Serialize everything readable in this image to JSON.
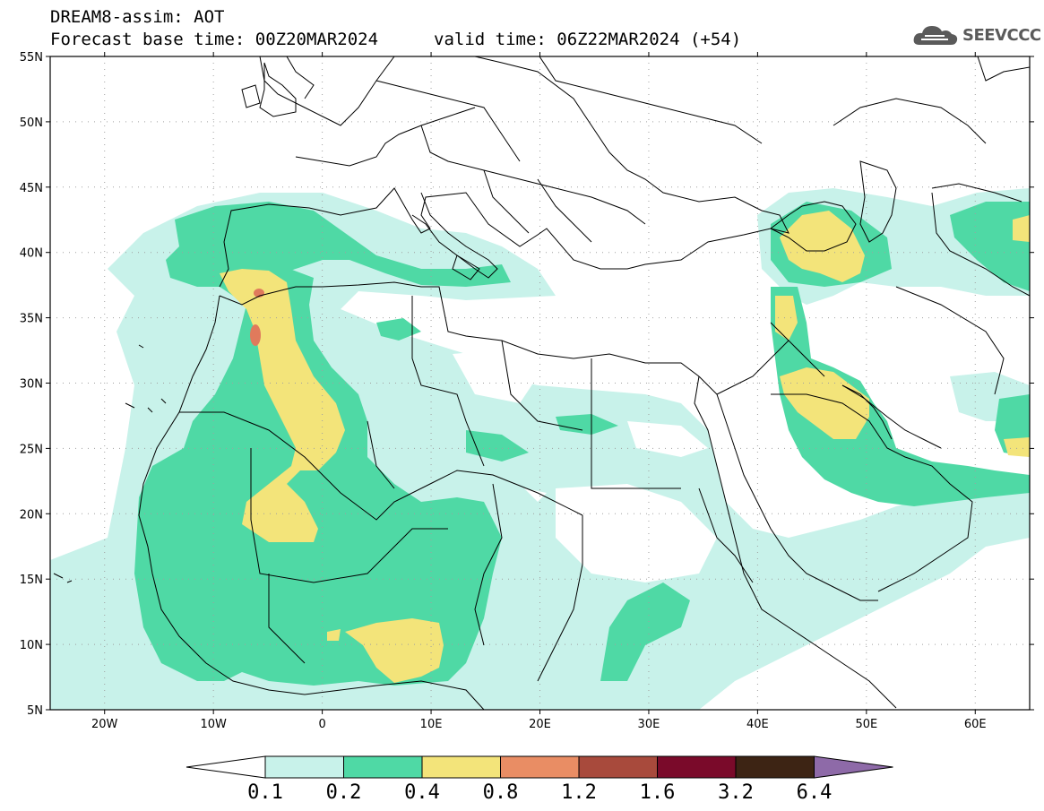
{
  "header": {
    "title": "DREAM8-assim: AOT",
    "base_time": "Forecast base time: 00Z20MAR2024",
    "valid_time": "valid time: 06Z22MAR2024 (+54)",
    "logo_text": "SEEVCCC"
  },
  "map": {
    "lon_range": [
      -25,
      65
    ],
    "lat_range": [
      5,
      55
    ],
    "lat_ticks": [
      "5N",
      "10N",
      "15N",
      "20N",
      "25N",
      "30N",
      "35N",
      "40N",
      "45N",
      "50N",
      "55N"
    ],
    "lon_ticks": [
      "20W",
      "10W",
      "0",
      "10E",
      "20E",
      "30E",
      "40E",
      "50E",
      "60E"
    ],
    "grid": true
  },
  "colorbar": {
    "levels": [
      "0.1",
      "0.2",
      "0.4",
      "0.8",
      "1.2",
      "1.6",
      "3.2",
      "6.4"
    ],
    "colors": [
      "#c8f2ea",
      "#4fd9a5",
      "#f3e47a",
      "#e98d64",
      "#a84a3c",
      "#7a0a2a",
      "#3d2414",
      "#8e6aa8"
    ],
    "under_color": "#ffffff"
  },
  "colors": {
    "aot_low": "#c8f2ea",
    "aot_mid": "#4fd9a5",
    "aot_high": "#f3e47a",
    "aot_peak": "#e07a5c"
  }
}
